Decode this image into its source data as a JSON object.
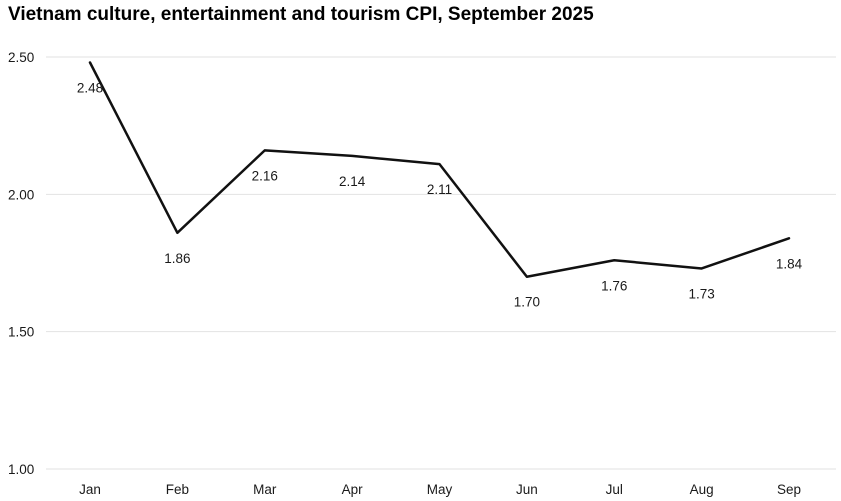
{
  "chart_data": {
    "type": "line",
    "title": "Vietnam culture, entertainment and tourism CPI, September 2025",
    "categories": [
      "Jan",
      "Feb",
      "Mar",
      "Apr",
      "May",
      "Jun",
      "Jul",
      "Aug",
      "Sep"
    ],
    "values": [
      2.48,
      1.86,
      2.16,
      2.14,
      2.11,
      1.7,
      1.76,
      1.73,
      1.84
    ],
    "data_labels": [
      "2.48",
      "1.86",
      "2.16",
      "2.14",
      "2.11",
      "1.70",
      "1.76",
      "1.73",
      "1.84"
    ],
    "xlabel": "",
    "ylabel": "",
    "ylim": [
      1.0,
      2.5
    ],
    "yticks": [
      1.0,
      1.5,
      2.0,
      2.5
    ],
    "ytick_labels": [
      "1.00",
      "1.50",
      "2.00",
      "2.50"
    ],
    "grid": true,
    "legend": "none",
    "line_color": "#111111",
    "grid_color": "#e2e2e2",
    "text_color": "#1a1a1a"
  }
}
